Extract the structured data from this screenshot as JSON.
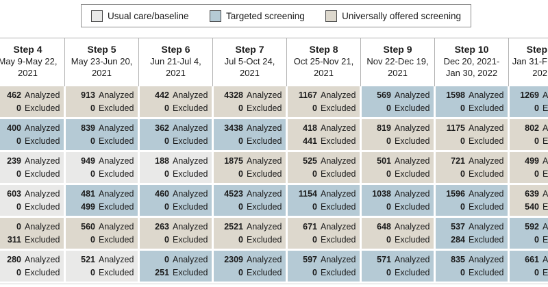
{
  "colors": {
    "usual": "#e9e9e8",
    "targeted": "#b5cad5",
    "universal": "#ddd8cd",
    "border": "#b0b0b0",
    "text": "#1a1a1a"
  },
  "legend": {
    "items": [
      {
        "key": "usual",
        "label": "Usual care/baseline"
      },
      {
        "key": "targeted",
        "label": "Targeted screening"
      },
      {
        "key": "universal",
        "label": "Universally offered screening"
      }
    ]
  },
  "table": {
    "analyzed_label": "Analyzed",
    "excluded_label": "Excluded",
    "columns": [
      {
        "step": "Step 4",
        "date": "May 9-May 22,\n2021"
      },
      {
        "step": "Step 5",
        "date": "May 23-Jun 20,\n2021"
      },
      {
        "step": "Step 6",
        "date": "Jun 21-Jul 4,\n2021"
      },
      {
        "step": "Step 7",
        "date": "Jul 5-Oct 24,\n2021"
      },
      {
        "step": "Step 8",
        "date": "Oct 25-Nov 21,\n2021"
      },
      {
        "step": "Step 9",
        "date": "Nov 22-Dec 19,\n2021"
      },
      {
        "step": "Step 10",
        "date": "Dec 20, 2021-\nJan 30, 2022"
      },
      {
        "step": "Step",
        "date": "Jan 31-F\n202"
      }
    ],
    "rows": [
      {
        "cells": [
          {
            "analyzed": 462,
            "excluded": 0,
            "arm": "universal"
          },
          {
            "analyzed": 913,
            "excluded": 0,
            "arm": "universal"
          },
          {
            "analyzed": 442,
            "excluded": 0,
            "arm": "universal"
          },
          {
            "analyzed": 4328,
            "excluded": 0,
            "arm": "universal"
          },
          {
            "analyzed": 1167,
            "excluded": 0,
            "arm": "universal"
          },
          {
            "analyzed": 569,
            "excluded": 0,
            "arm": "targeted"
          },
          {
            "analyzed": 1598,
            "excluded": 0,
            "arm": "targeted"
          },
          {
            "analyzed": 1269,
            "excluded": 0,
            "arm": "targeted"
          }
        ]
      },
      {
        "cells": [
          {
            "analyzed": 400,
            "excluded": 0,
            "arm": "targeted"
          },
          {
            "analyzed": 839,
            "excluded": 0,
            "arm": "targeted"
          },
          {
            "analyzed": 362,
            "excluded": 0,
            "arm": "targeted"
          },
          {
            "analyzed": 3438,
            "excluded": 0,
            "arm": "targeted"
          },
          {
            "analyzed": 418,
            "excluded": 441,
            "arm": "universal"
          },
          {
            "analyzed": 819,
            "excluded": 0,
            "arm": "universal"
          },
          {
            "analyzed": 1175,
            "excluded": 0,
            "arm": "universal"
          },
          {
            "analyzed": 802,
            "excluded": 0,
            "arm": "universal"
          }
        ]
      },
      {
        "cells": [
          {
            "analyzed": 239,
            "excluded": 0,
            "arm": "usual"
          },
          {
            "analyzed": 949,
            "excluded": 0,
            "arm": "usual"
          },
          {
            "analyzed": 188,
            "excluded": 0,
            "arm": "usual"
          },
          {
            "analyzed": 1875,
            "excluded": 0,
            "arm": "universal"
          },
          {
            "analyzed": 525,
            "excluded": 0,
            "arm": "universal"
          },
          {
            "analyzed": 501,
            "excluded": 0,
            "arm": "universal"
          },
          {
            "analyzed": 721,
            "excluded": 0,
            "arm": "universal"
          },
          {
            "analyzed": 499,
            "excluded": 0,
            "arm": "universal"
          }
        ]
      },
      {
        "cells": [
          {
            "analyzed": 603,
            "excluded": 0,
            "arm": "usual"
          },
          {
            "analyzed": 481,
            "excluded": 499,
            "arm": "targeted"
          },
          {
            "analyzed": 460,
            "excluded": 0,
            "arm": "targeted"
          },
          {
            "analyzed": 4523,
            "excluded": 0,
            "arm": "targeted"
          },
          {
            "analyzed": 1154,
            "excluded": 0,
            "arm": "targeted"
          },
          {
            "analyzed": 1038,
            "excluded": 0,
            "arm": "targeted"
          },
          {
            "analyzed": 1596,
            "excluded": 0,
            "arm": "targeted"
          },
          {
            "analyzed": 639,
            "excluded": 540,
            "arm": "universal"
          }
        ]
      },
      {
        "cells": [
          {
            "analyzed": 0,
            "excluded": 311,
            "arm": "universal"
          },
          {
            "analyzed": 560,
            "excluded": 0,
            "arm": "universal"
          },
          {
            "analyzed": 263,
            "excluded": 0,
            "arm": "universal"
          },
          {
            "analyzed": 2521,
            "excluded": 0,
            "arm": "universal"
          },
          {
            "analyzed": 671,
            "excluded": 0,
            "arm": "universal"
          },
          {
            "analyzed": 648,
            "excluded": 0,
            "arm": "universal"
          },
          {
            "analyzed": 537,
            "excluded": 284,
            "arm": "targeted"
          },
          {
            "analyzed": 592,
            "excluded": 0,
            "arm": "targeted"
          }
        ]
      },
      {
        "cells": [
          {
            "analyzed": 280,
            "excluded": 0,
            "arm": "usual"
          },
          {
            "analyzed": 521,
            "excluded": 0,
            "arm": "usual"
          },
          {
            "analyzed": 0,
            "excluded": 251,
            "arm": "targeted"
          },
          {
            "analyzed": 2309,
            "excluded": 0,
            "arm": "targeted"
          },
          {
            "analyzed": 597,
            "excluded": 0,
            "arm": "targeted"
          },
          {
            "analyzed": 571,
            "excluded": 0,
            "arm": "targeted"
          },
          {
            "analyzed": 835,
            "excluded": 0,
            "arm": "targeted"
          },
          {
            "analyzed": 661,
            "excluded": 0,
            "arm": "targeted"
          }
        ]
      }
    ]
  }
}
